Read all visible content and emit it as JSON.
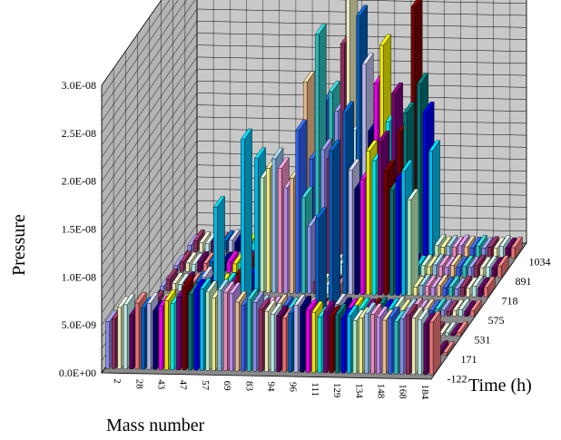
{
  "chart_data": {
    "type": "bar",
    "subtype": "3d-column",
    "xlabel": "Mass number",
    "ylabel": "Pressure",
    "zlabel": "Time (h)",
    "mass_numbers": [
      "2",
      "28",
      "43",
      "47",
      "57",
      "69",
      "83",
      "94",
      "96",
      "111",
      "129",
      "134",
      "148",
      "168",
      "184"
    ],
    "times": [
      "-122",
      "171",
      "531",
      "575",
      "718",
      "891",
      "1034"
    ],
    "y_ticks": [
      "0.0E+00",
      "5.0E-09",
      "1.0E-08",
      "1.5E-08",
      "2.0E-08",
      "2.5E-08",
      "3.0E-08"
    ],
    "ylim": [
      0,
      3e-08
    ],
    "grid": true,
    "legend": "none",
    "series_colors": [
      "#9999ff",
      "#993366",
      "#ffffcc",
      "#ccffff",
      "#660066",
      "#ff8080",
      "#0066cc",
      "#ccccff",
      "#000080",
      "#ff00ff",
      "#ffff00",
      "#00ffff",
      "#800080",
      "#800000",
      "#008080",
      "#0000ff",
      "#00ccff",
      "#ccffcc",
      "#ffff99",
      "#99ccff",
      "#ff99cc",
      "#cc99ff",
      "#ffcc99",
      "#3366ff",
      "#33cccc"
    ],
    "series": [
      {
        "time": "-122",
        "values": [
          4.9e-09,
          5.2e-09,
          6.4e-09,
          6.7e-09,
          5.6e-09,
          6.9e-09,
          6.4e-09,
          6.9e-09,
          6.1e-09,
          6.6e-09,
          7.2e-09,
          6.9e-09,
          7.6e-09,
          8.7e-09,
          7.9e-09,
          8.4e-09,
          8.5e-09,
          8.2e-09,
          7.6e-09,
          8.4e-09,
          8.2e-09,
          8.1e-09,
          7.2e-09,
          6.9e-09,
          7.5e-09,
          7.2e-09,
          6.5e-09,
          6.3e-09,
          6e-09,
          5.8e-09,
          5.6e-09,
          6.1e-09,
          7e-09,
          6.8e-09,
          6.5e-09,
          6.3e-09,
          5.8e-09,
          6.4e-09,
          5.9e-09,
          6.1e-09,
          5.7e-09,
          6e-09,
          5.5e-09,
          5.8e-09,
          6.3e-09,
          6.2e-09,
          5.9e-09,
          5.6e-09,
          5.9e-09,
          5.5e-09,
          5.8e-09,
          6.2e-09,
          5.9e-09,
          5.7e-09,
          5.3e-09,
          5.5e-09
        ]
      },
      {
        "time": "171",
        "values": [
          3e-10,
          6e-10,
          4e-10,
          5e-10,
          3e-10,
          4e-10,
          3e-10,
          5e-10,
          4e-10,
          3e-10,
          6e-10,
          4e-10,
          3e-10,
          5e-10,
          4e-10,
          3e-10,
          1.5e-08,
          2.5e-09,
          4e-10,
          3e-10,
          5e-10,
          4e-10,
          6e-10,
          3e-10,
          4e-10,
          5e-10,
          3e-10,
          4e-10,
          3e-10,
          5e-10,
          6e-10,
          1e-09,
          8e-10,
          4e-10,
          3e-10,
          5e-10,
          4e-10,
          3e-10,
          6e-10,
          4e-10,
          5e-10,
          3e-10,
          4e-10,
          3e-10,
          5e-10,
          4e-10,
          3e-10,
          6e-10,
          4e-10,
          5e-10,
          3e-10,
          4e-10,
          5e-10,
          3e-10,
          4e-10,
          3e-10
        ]
      },
      {
        "time": "531",
        "values": [
          2e-10,
          4e-10,
          3e-10,
          2e-10,
          3e-10,
          2e-10,
          4e-10,
          3e-10,
          2e-10,
          3e-10,
          4e-10,
          2e-10,
          3e-10,
          2e-10,
          4e-10,
          3e-10,
          2e-10,
          3e-10,
          2e-10,
          4e-10,
          3e-10,
          2e-10,
          3e-10,
          4e-10,
          2e-10,
          3e-10,
          2e-10,
          4e-10,
          3e-10,
          2e-10,
          3e-10,
          1.2e-08,
          2e-10,
          3e-10,
          2e-10,
          4e-10,
          3e-10,
          2e-10,
          3e-10,
          2e-10,
          4e-10,
          3e-10,
          2e-10,
          3e-10,
          2e-10,
          4e-10,
          3e-10,
          2e-10,
          3e-10,
          2e-10,
          4e-10,
          3e-10,
          2e-10,
          3e-10,
          2e-10,
          4e-10
        ]
      },
      {
        "time": "575",
        "values": [
          4e-10,
          9e-10,
          6e-10,
          5e-10,
          7e-10,
          6e-10,
          5e-10,
          8e-10,
          6e-10,
          5e-10,
          7e-10,
          6e-10,
          5e-10,
          6e-10,
          7e-10,
          6e-10,
          1.8e-08,
          5e-10,
          6e-10,
          7e-10,
          5e-10,
          6e-10,
          8e-10,
          6e-10,
          5e-10,
          6e-10,
          7e-10,
          5e-10,
          6e-10,
          5e-10,
          7e-10,
          1.7e-08,
          1e-09,
          6e-10,
          5e-10,
          7e-10,
          6e-10,
          5e-10,
          6e-10,
          7e-10,
          5e-10,
          6e-10,
          8e-10,
          5e-10,
          6e-10,
          7e-10,
          5e-10,
          6e-10,
          5e-10,
          7e-10,
          6e-10,
          5e-10,
          6e-10,
          7e-10,
          5e-10,
          6e-10
        ]
      },
      {
        "time": "718",
        "values": [
          5e-10,
          1.2e-09,
          8e-10,
          7e-10,
          9e-10,
          8e-10,
          1e-09,
          1.5e-09,
          9e-10,
          1.1e-09,
          8e-10,
          9e-10,
          1e-09,
          2e-09,
          1.5e-09,
          1.8e-09,
          1.4e-08,
          1.2e-08,
          1.3e-08,
          1.4e-08,
          1.3e-08,
          1.1e-08,
          1.2e-08,
          1.7e-08,
          1e-08,
          7e-09,
          1.2e-09,
          1e-09,
          9e-10,
          8e-10,
          1e-09,
          1.9e-08,
          1.3e-08,
          1.1e-08,
          1.2e-08,
          1.5e-08,
          1.4e-08,
          1.6e-08,
          1.3e-08,
          1.1e-08,
          1.2e-08,
          1.3e-08,
          1e-08,
          9e-10,
          1.1e-09,
          1e-09,
          9e-10,
          1.1e-09,
          9e-10,
          1e-09,
          8e-10,
          1e-09,
          9e-10,
          1.1e-09,
          9e-10,
          1e-09
        ]
      },
      {
        "time": "891",
        "values": [
          6e-10,
          1e-09,
          9e-10,
          8e-10,
          1e-09,
          9e-10,
          1.1e-09,
          1.2e-09,
          1e-09,
          1.1e-09,
          9e-10,
          1e-09,
          1.2e-09,
          1.6e-09,
          1.3e-09,
          1.5e-09,
          1.2e-09,
          1e-09,
          1.1e-09,
          1.3e-09,
          1.2e-09,
          1e-09,
          2e-08,
          1.2e-08,
          2.5e-08,
          1.3e-08,
          1.2e-08,
          1e-09,
          1.1e-09,
          1e-09,
          1.2e-09,
          2.7e-08,
          2.2e-08,
          1.5e-08,
          2e-08,
          2.4e-08,
          1.6e-08,
          1.9e-08,
          1.5e-08,
          1.7e-08,
          1.2e-09,
          1e-09,
          1.1e-09,
          1e-09,
          1.2e-09,
          1.1e-09,
          1e-09,
          1.2e-09,
          1e-09,
          1.1e-09,
          1e-09,
          1.2e-09,
          1e-09,
          1.1e-09,
          1e-09,
          1.2e-09
        ]
      },
      {
        "time": "1034",
        "values": [
          7e-10,
          1.2e-09,
          1e-09,
          9e-10,
          1.1e-09,
          1e-09,
          1.2e-09,
          1.3e-09,
          1.1e-09,
          1.2e-09,
          1e-09,
          1.1e-09,
          1.3e-09,
          1.8e-09,
          1.4e-09,
          1.6e-09,
          1.3e-09,
          1.1e-09,
          1.2e-09,
          1.4e-09,
          1.3e-09,
          1.1e-09,
          1.2e-09,
          1.6e-08,
          1.7e-08,
          1.5e-08,
          2.2e-08,
          2.7e-08,
          1.3e-08,
          1.2e-09,
          1.1e-09,
          1e-09,
          1.2e-09,
          1.1e-09,
          1e-09,
          1.2e-09,
          1.1e-09,
          1.4e-08,
          2.6e-08,
          1.8e-08,
          1.5e-08,
          1.1e-08,
          1.2e-09,
          1e-09,
          1.1e-09,
          1e-09,
          1.2e-09,
          1.1e-09,
          1e-09,
          1.2e-09,
          1e-09,
          1.1e-09,
          1e-09,
          1.2e-09,
          1e-09,
          1.1e-09
        ]
      }
    ]
  }
}
